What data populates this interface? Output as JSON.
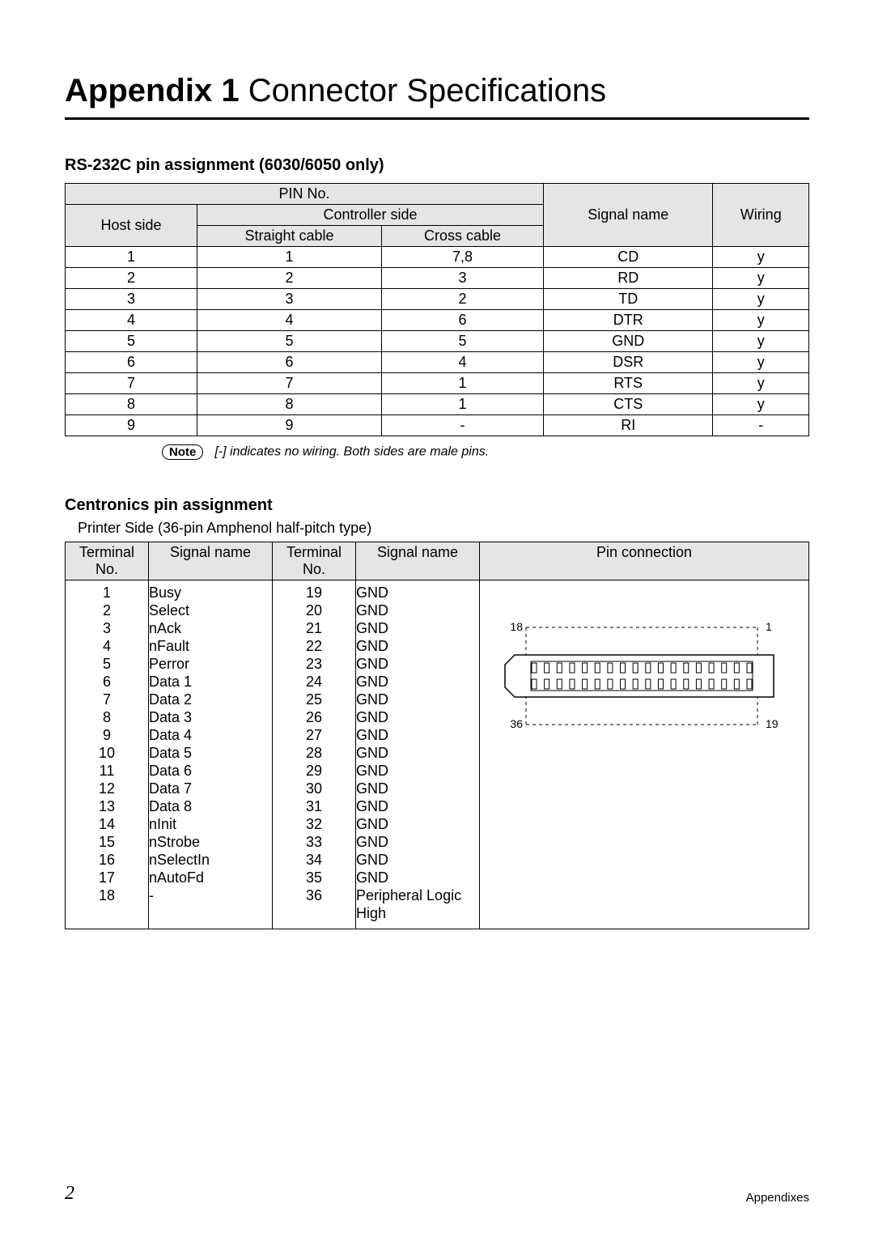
{
  "title_bold": "Appendix 1",
  "title_rest": " Connector Specifications",
  "rs232c": {
    "heading": "RS-232C pin assignment (6030/6050 only)",
    "headers": {
      "pin_no": "PIN No.",
      "controller_side": "Controller side",
      "host_side": "Host side",
      "straight": "Straight cable",
      "cross": "Cross cable",
      "signal_name": "Signal name",
      "wiring": "Wiring"
    },
    "rows": [
      {
        "host": "1",
        "straight": "1",
        "cross": "7,8",
        "signal": "CD",
        "wiring": "y"
      },
      {
        "host": "2",
        "straight": "2",
        "cross": "3",
        "signal": "RD",
        "wiring": "y"
      },
      {
        "host": "3",
        "straight": "3",
        "cross": "2",
        "signal": "TD",
        "wiring": "y"
      },
      {
        "host": "4",
        "straight": "4",
        "cross": "6",
        "signal": "DTR",
        "wiring": "y"
      },
      {
        "host": "5",
        "straight": "5",
        "cross": "5",
        "signal": "GND",
        "wiring": "y"
      },
      {
        "host": "6",
        "straight": "6",
        "cross": "4",
        "signal": "DSR",
        "wiring": "y"
      },
      {
        "host": "7",
        "straight": "7",
        "cross": "1",
        "signal": "RTS",
        "wiring": "y"
      },
      {
        "host": "8",
        "straight": "8",
        "cross": "1",
        "signal": "CTS",
        "wiring": "y"
      },
      {
        "host": "9",
        "straight": "9",
        "cross": "-",
        "signal": "RI",
        "wiring": "-"
      }
    ],
    "note_label": "Note",
    "note_text": "[-] indicates no wiring. Both sides are male pins."
  },
  "centronics": {
    "heading": "Centronics pin assignment",
    "subtext": "Printer Side (36-pin Amphenol half-pitch type)",
    "headers": {
      "terminal_no": "Terminal No.",
      "signal_name": "Signal name",
      "pin_connection": "Pin connection"
    },
    "left": [
      {
        "no": "1",
        "name": "Busy"
      },
      {
        "no": "2",
        "name": "Select"
      },
      {
        "no": "3",
        "name": "nAck"
      },
      {
        "no": "4",
        "name": "nFault"
      },
      {
        "no": "5",
        "name": "Perror"
      },
      {
        "no": "6",
        "name": "Data 1"
      },
      {
        "no": "7",
        "name": "Data 2"
      },
      {
        "no": "8",
        "name": "Data 3"
      },
      {
        "no": "9",
        "name": "Data 4"
      },
      {
        "no": "10",
        "name": "Data 5"
      },
      {
        "no": "11",
        "name": "Data 6"
      },
      {
        "no": "12",
        "name": "Data 7"
      },
      {
        "no": "13",
        "name": "Data 8"
      },
      {
        "no": "14",
        "name": "nInit"
      },
      {
        "no": "15",
        "name": "nStrobe"
      },
      {
        "no": "16",
        "name": "nSelectIn"
      },
      {
        "no": "17",
        "name": "nAutoFd"
      },
      {
        "no": "18",
        "name": "-"
      }
    ],
    "right": [
      {
        "no": "19",
        "name": "GND"
      },
      {
        "no": "20",
        "name": "GND"
      },
      {
        "no": "21",
        "name": "GND"
      },
      {
        "no": "22",
        "name": "GND"
      },
      {
        "no": "23",
        "name": "GND"
      },
      {
        "no": "24",
        "name": "GND"
      },
      {
        "no": "25",
        "name": "GND"
      },
      {
        "no": "26",
        "name": "GND"
      },
      {
        "no": "27",
        "name": "GND"
      },
      {
        "no": "28",
        "name": "GND"
      },
      {
        "no": "29",
        "name": "GND"
      },
      {
        "no": "30",
        "name": "GND"
      },
      {
        "no": "31",
        "name": "GND"
      },
      {
        "no": "32",
        "name": "GND"
      },
      {
        "no": "33",
        "name": "GND"
      },
      {
        "no": "34",
        "name": "GND"
      },
      {
        "no": "35",
        "name": "GND"
      },
      {
        "no": "36",
        "name": "Peripheral Logic High"
      }
    ],
    "diagram": {
      "labels": {
        "tl": "18",
        "tr": "1",
        "bl": "36",
        "br": "19"
      },
      "pin_count_per_row": 18,
      "stroke": "#000000",
      "label_fontsize": 14
    }
  },
  "footer": {
    "page": "2",
    "label": "Appendixes"
  },
  "colors": {
    "header_bg": "#e5e5e5",
    "border": "#000000",
    "text": "#000000",
    "background": "#ffffff"
  }
}
